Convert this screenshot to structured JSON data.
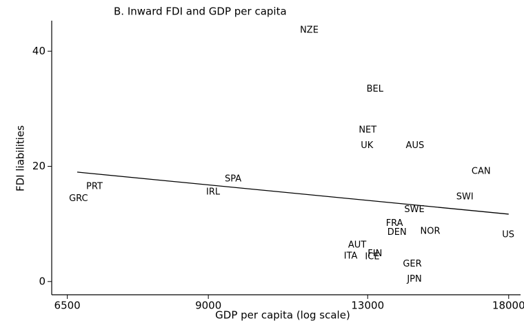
{
  "chart_data": {
    "type": "scatter",
    "title": "B. Inward FDI and GDP per capita",
    "x_label": "GDP per capita (log scale)",
    "y_label": "FDI liabilities",
    "x_scale": "log",
    "color": "#000000",
    "points": [
      {
        "label": "NZE",
        "x": 11360,
        "y": 43.6
      },
      {
        "label": "BEL",
        "x": 13220,
        "y": 33.4
      },
      {
        "label": "NET",
        "x": 13000,
        "y": 26.3
      },
      {
        "label": "UK",
        "x": 12980,
        "y": 23.6
      },
      {
        "label": "AUS",
        "x": 14500,
        "y": 23.6
      },
      {
        "label": "CAN",
        "x": 16890,
        "y": 19.1
      },
      {
        "label": "SPA",
        "x": 9530,
        "y": 17.8
      },
      {
        "label": "PRT",
        "x": 6920,
        "y": 16.5
      },
      {
        "label": "GRC",
        "x": 6670,
        "y": 14.4
      },
      {
        "label": "IRL",
        "x": 9100,
        "y": 15.5
      },
      {
        "label": "SWI",
        "x": 16270,
        "y": 14.7
      },
      {
        "label": "SWE",
        "x": 14480,
        "y": 12.5
      },
      {
        "label": "FRA",
        "x": 13830,
        "y": 10.1
      },
      {
        "label": "DEN",
        "x": 13910,
        "y": 8.5
      },
      {
        "label": "NOR",
        "x": 15020,
        "y": 8.7
      },
      {
        "label": "US",
        "x": 17980,
        "y": 8.1
      },
      {
        "label": "AUT",
        "x": 12690,
        "y": 6.3
      },
      {
        "label": "FIN",
        "x": 13220,
        "y": 4.8
      },
      {
        "label": "ITA",
        "x": 12500,
        "y": 4.4
      },
      {
        "label": "ICE",
        "x": 13140,
        "y": 4.3
      },
      {
        "label": "GER",
        "x": 14410,
        "y": 3.0
      },
      {
        "label": "JPN",
        "x": 14480,
        "y": 0.4
      }
    ],
    "fit": {
      "x": [
        6650,
        18000
      ],
      "y": [
        19.0,
        11.7
      ]
    },
    "xlim": [
      6270,
      18500
    ],
    "xticks": [
      6500,
      9000,
      13000,
      18000
    ],
    "ylim": [
      -2.3,
      45.3
    ],
    "yticks": [
      0,
      20,
      40
    ]
  }
}
